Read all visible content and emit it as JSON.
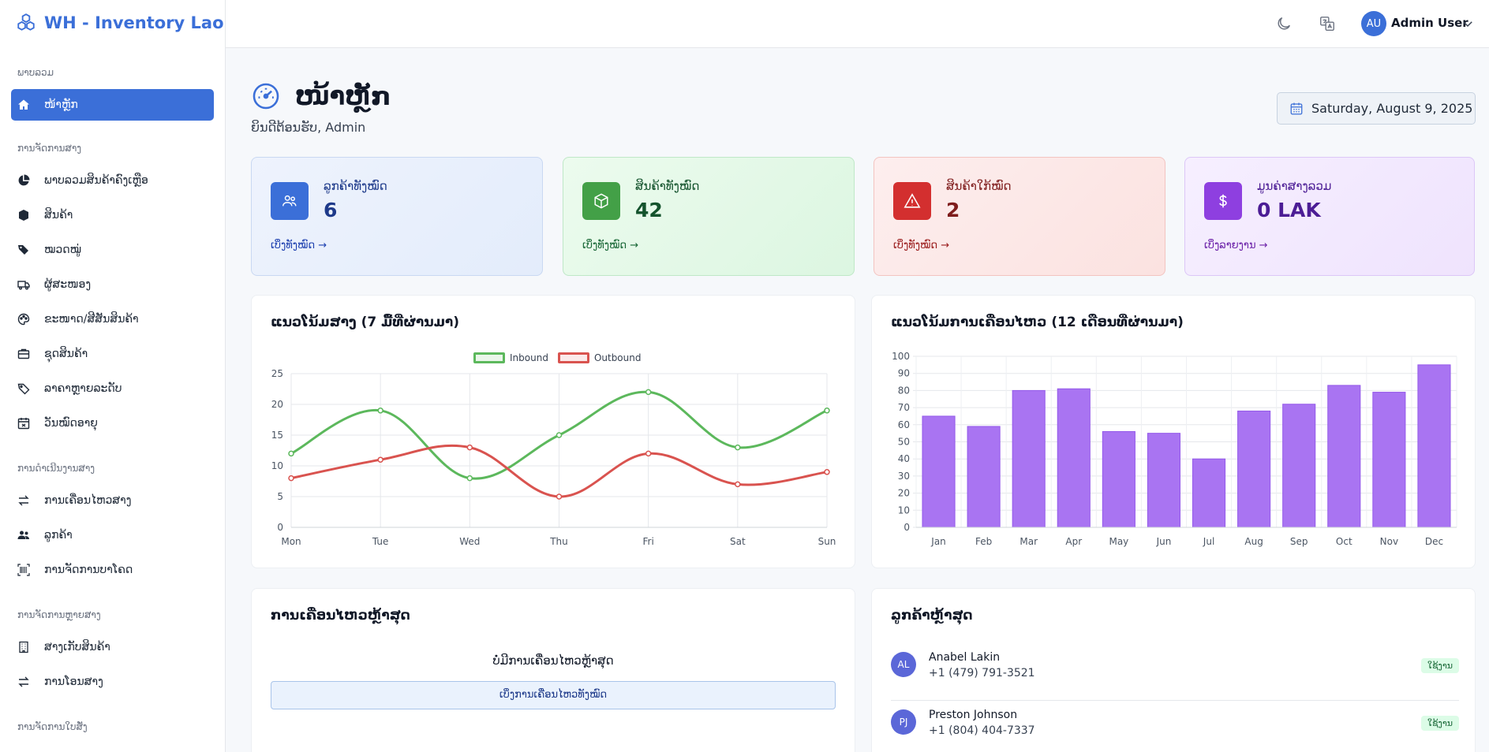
{
  "app": {
    "title": "WH - Inventory Lao"
  },
  "topbar": {
    "user_initials": "AU",
    "user_name": "Admin User"
  },
  "sidebar": {
    "sections": [
      {
        "label": "ພາບລວມ",
        "items": [
          {
            "label": "ໜ້າຫຼັກ",
            "icon": "home-icon",
            "active": true
          }
        ]
      },
      {
        "label": "ການຈັດການສາງ",
        "items": [
          {
            "label": "ພາບລວມສິນຄ້າຄົງເຫຼືອ",
            "icon": "pie-chart-icon"
          },
          {
            "label": "ສິນຄ້າ",
            "icon": "cube-icon"
          },
          {
            "label": "ໝວດໝູ່",
            "icon": "tags-icon"
          },
          {
            "label": "ຜູ້ສະໜອງ",
            "icon": "truck-icon"
          },
          {
            "label": "ຂະໜາດ/ສີສັນສິນຄ້າ",
            "icon": "palette-icon"
          },
          {
            "label": "ຊຸດສິນຄ້າ",
            "icon": "box-icon"
          },
          {
            "label": "ລາຄາຫຼາຍລະດັບ",
            "icon": "tag-icon"
          },
          {
            "label": "ວັນໝົດອາຍຸ",
            "icon": "calendar-x-icon"
          }
        ]
      },
      {
        "label": "ການດຳເນີນງານສາງ",
        "items": [
          {
            "label": "ການເຄື່ອນໄຫວສາງ",
            "icon": "exchange-icon"
          },
          {
            "label": "ລູກຄ້າ",
            "icon": "users-icon"
          },
          {
            "label": "ການຈັດການບາໂຄດ",
            "icon": "barcode-icon"
          }
        ]
      },
      {
        "label": "ການຈັດການຫຼາຍສາງ",
        "items": [
          {
            "label": "ສາງເກັບສິນຄ້າ",
            "icon": "building-icon"
          },
          {
            "label": "ການໂອນສາງ",
            "icon": "transfer-icon"
          }
        ]
      },
      {
        "label": "ການຈັດການໃບສັ່ງ",
        "items": []
      }
    ]
  },
  "header": {
    "title": "ໜ້າຫຼັກ",
    "welcome": "ຍິນດີຕ້ອນຮັບ, Admin",
    "date": "Saturday, August 9, 2025"
  },
  "stats": [
    {
      "label": "ລູກຄ້າທັງໝົດ",
      "value": "6",
      "link": "ເບິ່ງທັງໝົດ →",
      "icon": "users-icon",
      "accent": "#3b6fd8"
    },
    {
      "label": "ສິນຄ້າທັງໝົດ",
      "value": "42",
      "link": "ເບິ່ງທັງໝົດ →",
      "icon": "cube-icon",
      "accent": "#43a047"
    },
    {
      "label": "ສິນຄ້າໃກ້ໝົດ",
      "value": "2",
      "link": "ເບິ່ງທັງໝົດ →",
      "icon": "warning-icon",
      "accent": "#d32f2f"
    },
    {
      "label": "ມູນຄ່າສາງລວມ",
      "value": "0 LAK",
      "link": "ເບິ່ງລາຍງານ →",
      "icon": "dollar-icon",
      "accent": "#8e3fe0"
    }
  ],
  "chart_data": [
    {
      "type": "line",
      "title": "ແນວໂນ້ມສາງ (7 ມື້ທີ່ຜ່ານມາ)",
      "categories": [
        "Mon",
        "Tue",
        "Wed",
        "Thu",
        "Fri",
        "Sat",
        "Sun"
      ],
      "series": [
        {
          "name": "Inbound",
          "values": [
            12,
            19,
            8,
            15,
            22,
            13,
            19
          ],
          "color": "#5cb85c"
        },
        {
          "name": "Outbound",
          "values": [
            8,
            11,
            13,
            5,
            12,
            7,
            9
          ],
          "color": "#d9534f"
        }
      ],
      "yticks": [
        "0",
        "5",
        "10",
        "15",
        "20",
        "25"
      ],
      "ylim": [
        0,
        25
      ],
      "legend": "top"
    },
    {
      "type": "bar",
      "title": "ແນວໂນ້ມການເຄື່ອນໄຫວ (12 ເດືອນທີ່ຜ່ານມາ)",
      "categories": [
        "Jan",
        "Feb",
        "Mar",
        "Apr",
        "May",
        "Jun",
        "Jul",
        "Aug",
        "Sep",
        "Oct",
        "Nov",
        "Dec"
      ],
      "values": [
        65,
        59,
        80,
        81,
        56,
        55,
        40,
        68,
        72,
        83,
        79,
        95
      ],
      "color": "#a974f2",
      "yticks": [
        "0",
        "10",
        "20",
        "30",
        "40",
        "50",
        "60",
        "70",
        "80",
        "90",
        "100"
      ],
      "ylim": [
        0,
        100
      ]
    }
  ],
  "recent_movements": {
    "title": "ການເຄື່ອນໄຫວຫຼ້າສຸດ",
    "empty": "ບໍ່ມີການເຄື່ອນໄຫວຫຼ້າສຸດ",
    "button": "ເບິ່ງການເຄື່ອນໄຫວທັງໝົດ"
  },
  "recent_customers": {
    "title": "ລູກຄ້າຫຼ້າສຸດ",
    "items": [
      {
        "initials": "AL",
        "name": "Anabel Lakin",
        "phone": "+1 (479) 791-3521",
        "status": "ໃຊ້ງານ"
      },
      {
        "initials": "PJ",
        "name": "Preston Johnson",
        "phone": "+1 (804) 404-7337",
        "status": "ໃຊ້ງານ"
      }
    ]
  }
}
